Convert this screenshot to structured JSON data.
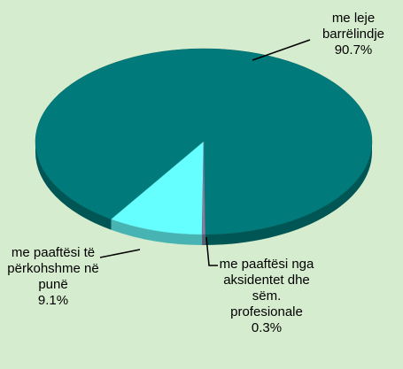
{
  "chart_data": {
    "type": "pie",
    "categories": [
      "me leje barrëlindje",
      "me paaftësi të përkohshme në punë",
      "me paaftësi nga aksidentet dhe sëm. profesionale"
    ],
    "values": [
      90.7,
      9.1,
      0.3
    ],
    "value_labels": [
      "90.7%",
      "9.1%",
      "0.3%"
    ],
    "colors": [
      "#007a7a",
      "#66ffff",
      "#8080a0"
    ]
  }
}
